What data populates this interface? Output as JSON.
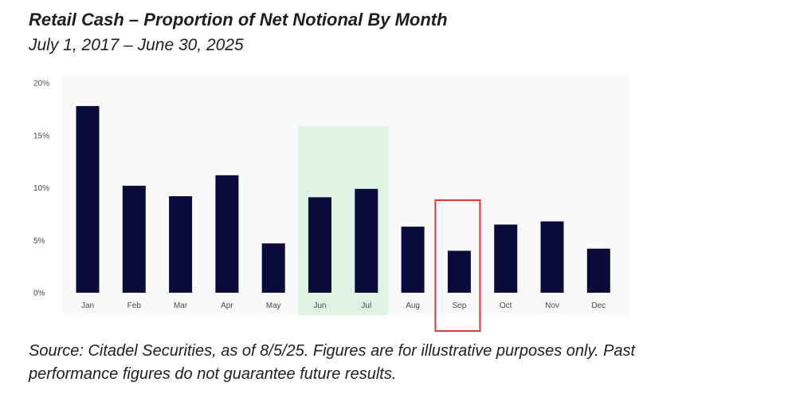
{
  "title": "Retail Cash – Proportion of Net Notional By Month",
  "subtitle": "July 1, 2017 – June 30, 2025",
  "footnote": {
    "line1": "Source: Citadel Securities, as of 8/5/25. Figures are for illustrative purposes only. Past",
    "line2": "performance figures do not guarantee future results."
  },
  "chart_data": {
    "type": "bar",
    "title": "Retail Cash – Proportion of Net Notional By Month",
    "subtitle": "July 1, 2017 – June 30, 2025",
    "xlabel": "",
    "ylabel": "",
    "categories": [
      "Jan",
      "Feb",
      "Mar",
      "Apr",
      "May",
      "Jun",
      "Jul",
      "Aug",
      "Sep",
      "Oct",
      "Nov",
      "Dec"
    ],
    "values": [
      17.8,
      10.2,
      9.2,
      11.2,
      4.7,
      9.1,
      9.9,
      6.3,
      4.0,
      6.5,
      6.8,
      4.2
    ],
    "yticks": [
      "0%",
      "5%",
      "10%",
      "15%",
      "20%"
    ],
    "ylim": [
      0,
      20
    ],
    "grid": false,
    "highlight_band": [
      "Jun",
      "Jul"
    ],
    "highlight_box": "Sep",
    "colors": {
      "bar": "#0b0b3b",
      "band": "#dff3e4",
      "box": "#e03b3b",
      "plot_background": "#f9f9f9"
    }
  }
}
